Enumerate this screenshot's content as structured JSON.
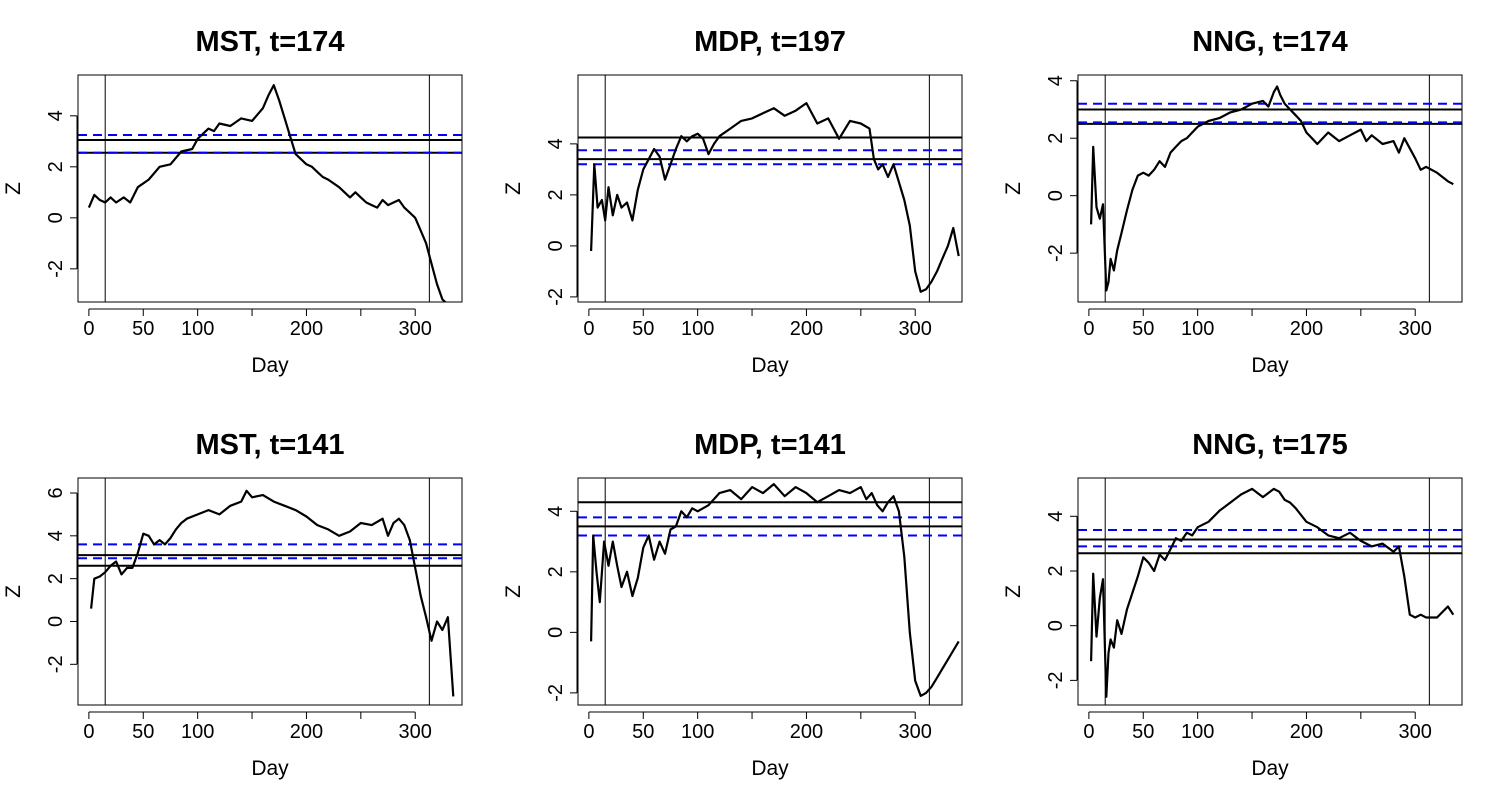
{
  "figure": {
    "rows": 2,
    "cols": 3
  },
  "colors": {
    "series": "#000000",
    "threshold_solid": "#000000",
    "threshold_dashed": "#0000ff",
    "background": "#ffffff"
  },
  "chart_data": [
    {
      "type": "line",
      "title": "MST, t=174",
      "xlabel": "Day",
      "ylabel": "Z",
      "xlim": [
        -10,
        343
      ],
      "ylim": [
        -3.3,
        5.6
      ],
      "xticks": [
        0,
        50,
        100,
        150,
        200,
        250,
        300
      ],
      "xtick_labels": [
        "0",
        "50",
        "100",
        "",
        "200",
        "",
        "300"
      ],
      "yticks": [
        -2,
        0,
        2,
        4
      ],
      "ytick_labels": [
        "-2",
        "0",
        "2",
        "4"
      ],
      "vlines": [
        15,
        313
      ],
      "hlines_solid": [
        3.05,
        2.55
      ],
      "hlines_dashed": [
        3.25,
        2.55
      ],
      "series": [
        {
          "name": "Z",
          "x": [
            0,
            5,
            10,
            15,
            20,
            25,
            32,
            38,
            45,
            55,
            65,
            75,
            85,
            95,
            100,
            105,
            110,
            115,
            120,
            130,
            140,
            150,
            160,
            165,
            170,
            175,
            180,
            185,
            190,
            195,
            200,
            205,
            210,
            215,
            220,
            230,
            240,
            245,
            250,
            255,
            260,
            265,
            270,
            275,
            280,
            285,
            290,
            295,
            300,
            305,
            310,
            315,
            320,
            325,
            330
          ],
          "y": [
            0.4,
            0.9,
            0.7,
            0.6,
            0.8,
            0.6,
            0.8,
            0.6,
            1.2,
            1.5,
            2.0,
            2.1,
            2.6,
            2.7,
            3.1,
            3.3,
            3.5,
            3.4,
            3.7,
            3.6,
            3.9,
            3.8,
            4.3,
            4.8,
            5.2,
            4.6,
            3.9,
            3.2,
            2.5,
            2.3,
            2.1,
            2.0,
            1.8,
            1.6,
            1.5,
            1.2,
            0.8,
            1.0,
            0.8,
            0.6,
            0.5,
            0.4,
            0.7,
            0.5,
            0.6,
            0.7,
            0.4,
            0.2,
            0.0,
            -0.5,
            -1.0,
            -1.8,
            -2.6,
            -3.2,
            -3.4
          ]
        }
      ]
    },
    {
      "type": "line",
      "title": "MDP, t=197",
      "xlabel": "Day",
      "ylabel": "Z",
      "xlim": [
        -10,
        343
      ],
      "ylim": [
        -2.2,
        6.7
      ],
      "xticks": [
        0,
        50,
        100,
        150,
        200,
        250,
        300
      ],
      "xtick_labels": [
        "0",
        "50",
        "100",
        "",
        "200",
        "",
        "300"
      ],
      "yticks": [
        -2,
        0,
        2,
        4
      ],
      "ytick_labels": [
        "-2",
        "0",
        "2",
        "4"
      ],
      "vlines": [
        15,
        313
      ],
      "hlines_solid": [
        4.25,
        3.4
      ],
      "hlines_dashed": [
        3.75,
        3.2
      ],
      "series": [
        {
          "name": "Z",
          "x": [
            2,
            5,
            8,
            12,
            15,
            18,
            22,
            26,
            30,
            35,
            40,
            45,
            50,
            55,
            60,
            65,
            70,
            75,
            80,
            85,
            90,
            95,
            100,
            105,
            110,
            115,
            120,
            130,
            140,
            150,
            160,
            170,
            180,
            190,
            200,
            210,
            220,
            230,
            240,
            250,
            258,
            262,
            266,
            270,
            275,
            280,
            285,
            290,
            295,
            300,
            305,
            310,
            315,
            320,
            325,
            330,
            335,
            340
          ],
          "y": [
            -0.2,
            3.2,
            1.5,
            1.8,
            1.0,
            2.3,
            1.2,
            2.0,
            1.5,
            1.7,
            1.0,
            2.2,
            3.0,
            3.4,
            3.8,
            3.5,
            2.6,
            3.2,
            3.8,
            4.3,
            4.1,
            4.3,
            4.4,
            4.2,
            3.6,
            4.0,
            4.3,
            4.6,
            4.9,
            5.0,
            5.2,
            5.4,
            5.1,
            5.3,
            5.6,
            4.8,
            5.0,
            4.2,
            4.9,
            4.8,
            4.6,
            3.4,
            3.0,
            3.2,
            2.7,
            3.2,
            2.5,
            1.8,
            0.8,
            -1.0,
            -1.8,
            -1.7,
            -1.4,
            -1.0,
            -0.5,
            0.0,
            0.7,
            -0.4
          ]
        }
      ]
    },
    {
      "type": "line",
      "title": "NNG, t=174",
      "xlabel": "Day",
      "ylabel": "Z",
      "xlim": [
        -10,
        343
      ],
      "ylim": [
        -3.7,
        4.2
      ],
      "xticks": [
        0,
        50,
        100,
        150,
        200,
        250,
        300
      ],
      "xtick_labels": [
        "0",
        "50",
        "100",
        "",
        "200",
        "",
        "300"
      ],
      "yticks": [
        -2,
        0,
        2,
        4
      ],
      "ytick_labels": [
        "-2",
        "0",
        "2",
        "4"
      ],
      "vlines": [
        15,
        313
      ],
      "hlines_solid": [
        3.0,
        2.5
      ],
      "hlines_dashed": [
        3.2,
        2.55
      ],
      "series": [
        {
          "name": "Z",
          "x": [
            2,
            4,
            7,
            10,
            13,
            16,
            18,
            20,
            23,
            26,
            30,
            35,
            40,
            45,
            50,
            55,
            60,
            65,
            70,
            75,
            80,
            85,
            90,
            95,
            100,
            110,
            120,
            130,
            140,
            150,
            160,
            165,
            170,
            173,
            176,
            180,
            185,
            190,
            195,
            200,
            205,
            210,
            220,
            230,
            240,
            250,
            255,
            260,
            270,
            280,
            285,
            290,
            300,
            305,
            310,
            320,
            330,
            335
          ],
          "y": [
            -1.0,
            1.7,
            -0.4,
            -0.8,
            -0.3,
            -3.3,
            -3.0,
            -2.2,
            -2.6,
            -1.9,
            -1.3,
            -0.5,
            0.2,
            0.7,
            0.8,
            0.7,
            0.9,
            1.2,
            1.0,
            1.5,
            1.7,
            1.9,
            2.0,
            2.2,
            2.4,
            2.6,
            2.7,
            2.9,
            3.0,
            3.2,
            3.3,
            3.1,
            3.6,
            3.8,
            3.5,
            3.2,
            3.0,
            2.8,
            2.6,
            2.2,
            2.0,
            1.8,
            2.2,
            1.9,
            2.1,
            2.3,
            1.9,
            2.1,
            1.8,
            1.9,
            1.5,
            2.0,
            1.3,
            0.9,
            1.0,
            0.8,
            0.5,
            0.4
          ]
        }
      ]
    },
    {
      "type": "line",
      "title": "MST, t=141",
      "xlabel": "Day",
      "ylabel": "Z",
      "xlim": [
        -10,
        343
      ],
      "ylim": [
        -3.9,
        6.7
      ],
      "xticks": [
        0,
        50,
        100,
        150,
        200,
        250,
        300
      ],
      "xtick_labels": [
        "0",
        "50",
        "100",
        "",
        "200",
        "",
        "300"
      ],
      "yticks": [
        -2,
        0,
        2,
        4,
        6
      ],
      "ytick_labels": [
        "-2",
        "0",
        "2",
        "4",
        "6"
      ],
      "vlines": [
        15,
        313
      ],
      "hlines_solid": [
        3.1,
        2.6
      ],
      "hlines_dashed": [
        3.6,
        2.95
      ],
      "series": [
        {
          "name": "Z",
          "x": [
            2,
            5,
            10,
            15,
            20,
            25,
            30,
            35,
            40,
            45,
            50,
            55,
            60,
            65,
            70,
            75,
            80,
            85,
            90,
            100,
            110,
            120,
            130,
            140,
            145,
            150,
            160,
            170,
            180,
            190,
            200,
            210,
            220,
            230,
            240,
            250,
            260,
            270,
            275,
            280,
            285,
            290,
            295,
            300,
            305,
            310,
            315,
            320,
            325,
            330,
            335
          ],
          "y": [
            0.6,
            2.0,
            2.1,
            2.3,
            2.6,
            2.8,
            2.2,
            2.5,
            2.5,
            3.2,
            4.1,
            4.0,
            3.6,
            3.8,
            3.6,
            3.9,
            4.3,
            4.6,
            4.8,
            5.0,
            5.2,
            5.0,
            5.4,
            5.6,
            6.1,
            5.8,
            5.9,
            5.6,
            5.4,
            5.2,
            4.9,
            4.5,
            4.3,
            4.0,
            4.2,
            4.6,
            4.5,
            4.8,
            4.0,
            4.6,
            4.8,
            4.5,
            3.8,
            2.5,
            1.2,
            0.2,
            -0.9,
            0.0,
            -0.4,
            0.2,
            -3.5
          ]
        }
      ]
    },
    {
      "type": "line",
      "title": "MDP, t=141",
      "xlabel": "Day",
      "ylabel": "Z",
      "xlim": [
        -10,
        343
      ],
      "ylim": [
        -2.4,
        5.1
      ],
      "xticks": [
        0,
        50,
        100,
        150,
        200,
        250,
        300
      ],
      "xtick_labels": [
        "0",
        "50",
        "100",
        "",
        "200",
        "",
        "300"
      ],
      "yticks": [
        -2,
        0,
        2,
        4
      ],
      "ytick_labels": [
        "-2",
        "0",
        "2",
        "4"
      ],
      "vlines": [
        15,
        313
      ],
      "hlines_solid": [
        4.3,
        3.5
      ],
      "hlines_dashed": [
        3.8,
        3.2
      ],
      "series": [
        {
          "name": "Z",
          "x": [
            2,
            4,
            7,
            10,
            14,
            18,
            22,
            26,
            30,
            35,
            40,
            45,
            50,
            55,
            60,
            65,
            70,
            75,
            80,
            85,
            90,
            95,
            100,
            110,
            120,
            130,
            140,
            150,
            160,
            170,
            180,
            190,
            200,
            210,
            220,
            230,
            240,
            250,
            255,
            260,
            265,
            270,
            275,
            280,
            285,
            290,
            295,
            300,
            305,
            310,
            315,
            320,
            325,
            330,
            335,
            340
          ],
          "y": [
            -0.3,
            3.2,
            2.0,
            1.0,
            3.0,
            2.2,
            3.0,
            2.2,
            1.5,
            2.0,
            1.2,
            1.8,
            2.8,
            3.2,
            2.4,
            3.0,
            2.6,
            3.4,
            3.5,
            4.0,
            3.8,
            4.1,
            4.0,
            4.2,
            4.6,
            4.7,
            4.4,
            4.8,
            4.6,
            4.9,
            4.5,
            4.8,
            4.6,
            4.3,
            4.5,
            4.7,
            4.6,
            4.8,
            4.4,
            4.6,
            4.2,
            4.0,
            4.3,
            4.5,
            4.0,
            2.5,
            0.0,
            -1.6,
            -2.1,
            -2.0,
            -1.8,
            -1.5,
            -1.2,
            -0.9,
            -0.6,
            -0.3
          ]
        }
      ]
    },
    {
      "type": "line",
      "title": "NNG, t=175",
      "xlabel": "Day",
      "ylabel": "Z",
      "xlim": [
        -10,
        343
      ],
      "ylim": [
        -2.9,
        5.4
      ],
      "xticks": [
        0,
        50,
        100,
        150,
        200,
        250,
        300
      ],
      "xtick_labels": [
        "0",
        "50",
        "100",
        "",
        "200",
        "",
        "300"
      ],
      "yticks": [
        -2,
        0,
        2,
        4
      ],
      "ytick_labels": [
        "-2",
        "0",
        "2",
        "4"
      ],
      "vlines": [
        15,
        313
      ],
      "hlines_solid": [
        3.15,
        2.65
      ],
      "hlines_dashed": [
        3.5,
        2.9
      ],
      "series": [
        {
          "name": "Z",
          "x": [
            2,
            4,
            7,
            10,
            13,
            16,
            18,
            20,
            23,
            26,
            30,
            35,
            40,
            45,
            50,
            55,
            60,
            65,
            70,
            75,
            80,
            85,
            90,
            95,
            100,
            110,
            120,
            130,
            140,
            150,
            160,
            170,
            175,
            180,
            185,
            190,
            200,
            210,
            220,
            230,
            240,
            250,
            260,
            270,
            280,
            285,
            290,
            295,
            300,
            305,
            310,
            320,
            330,
            335
          ],
          "y": [
            -1.3,
            1.9,
            -0.4,
            1.0,
            1.7,
            -2.6,
            -1.0,
            -0.5,
            -0.8,
            0.2,
            -0.3,
            0.6,
            1.2,
            1.8,
            2.5,
            2.3,
            2.0,
            2.6,
            2.4,
            2.8,
            3.2,
            3.1,
            3.4,
            3.3,
            3.6,
            3.8,
            4.2,
            4.5,
            4.8,
            5.0,
            4.7,
            5.0,
            4.9,
            4.6,
            4.5,
            4.3,
            3.8,
            3.6,
            3.3,
            3.2,
            3.4,
            3.1,
            2.9,
            3.0,
            2.7,
            2.9,
            1.8,
            0.4,
            0.3,
            0.4,
            0.3,
            0.3,
            0.7,
            0.4
          ]
        }
      ]
    }
  ]
}
